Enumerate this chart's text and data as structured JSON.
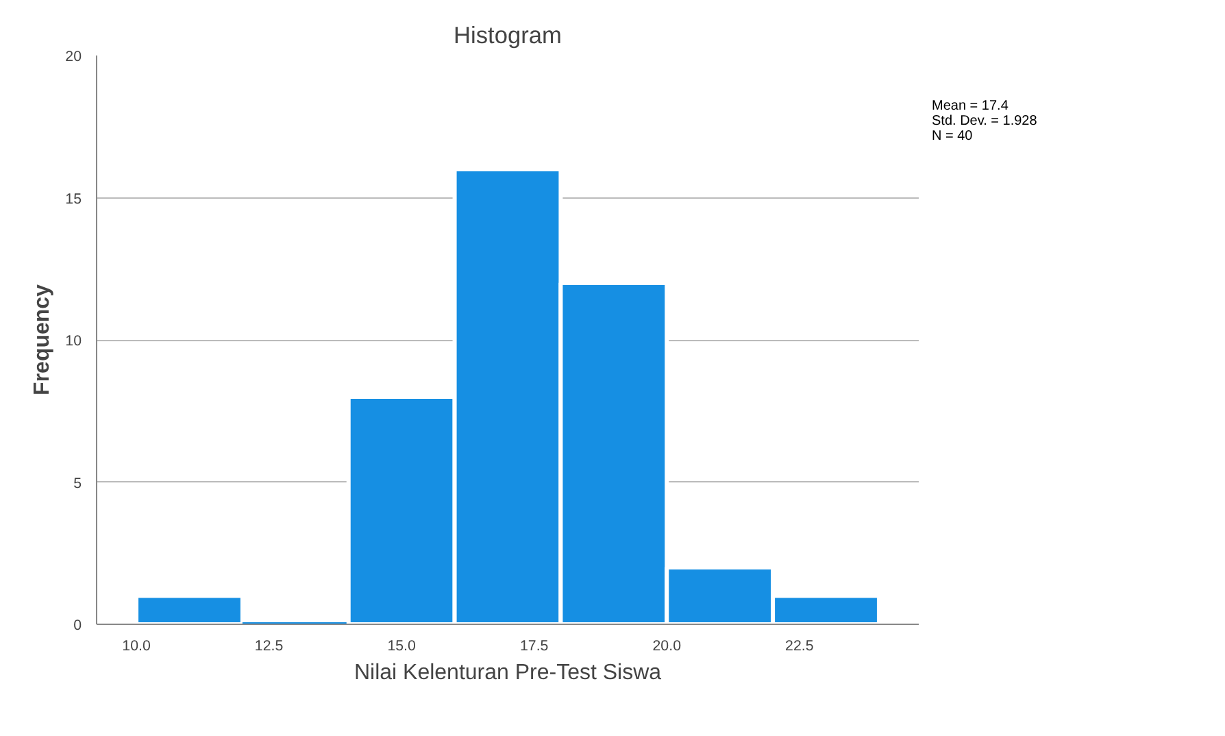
{
  "chart_data": {
    "type": "histogram",
    "title": "Histogram",
    "xlabel": "Nilai Kelenturan Pre-Test Siswa",
    "ylabel": "Frequency",
    "bins": [
      10,
      12,
      14,
      16,
      18,
      20,
      22,
      24
    ],
    "values": [
      1,
      0,
      8,
      16,
      12,
      2,
      1
    ],
    "color": "#168fe3",
    "xlim": [
      9.25,
      24.75
    ],
    "xticks": [
      {
        "value": 10,
        "label": "10.0"
      },
      {
        "value": 12.5,
        "label": "12.5"
      },
      {
        "value": 15,
        "label": "15.0"
      },
      {
        "value": 17.5,
        "label": "17.5"
      },
      {
        "value": 20,
        "label": "20.0"
      },
      {
        "value": 22.5,
        "label": "22.5"
      }
    ],
    "ylim": [
      0,
      20
    ],
    "yticks": [
      0,
      5,
      10,
      15,
      20
    ],
    "grid": "y",
    "annotations": [
      "Mean = 17.4",
      "Std. Dev. = 1.928",
      "N = 40"
    ]
  }
}
